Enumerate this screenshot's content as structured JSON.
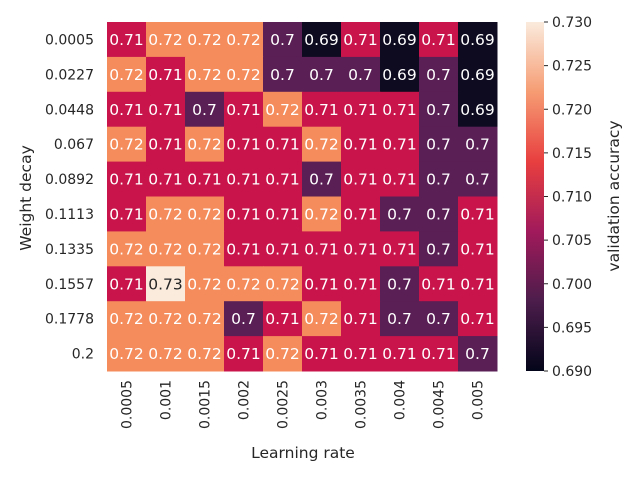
{
  "chart_data": {
    "type": "heatmap",
    "xlabel": "Learning rate",
    "ylabel": "Weight decay",
    "x_categories": [
      "0.0005",
      "0.001",
      "0.0015",
      "0.002",
      "0.0025",
      "0.003",
      "0.0035",
      "0.004",
      "0.0045",
      "0.005"
    ],
    "y_categories": [
      "0.0005",
      "0.0227",
      "0.0448",
      "0.067",
      "0.0892",
      "0.1113",
      "0.1335",
      "0.1557",
      "0.1778",
      "0.2"
    ],
    "values": [
      [
        0.71,
        0.72,
        0.72,
        0.72,
        0.7,
        0.69,
        0.71,
        0.69,
        0.71,
        0.69
      ],
      [
        0.72,
        0.71,
        0.72,
        0.72,
        0.7,
        0.7,
        0.7,
        0.69,
        0.7,
        0.69
      ],
      [
        0.71,
        0.71,
        0.7,
        0.71,
        0.72,
        0.71,
        0.71,
        0.71,
        0.7,
        0.69
      ],
      [
        0.72,
        0.71,
        0.72,
        0.71,
        0.71,
        0.72,
        0.71,
        0.71,
        0.7,
        0.7
      ],
      [
        0.71,
        0.71,
        0.71,
        0.71,
        0.71,
        0.7,
        0.71,
        0.71,
        0.7,
        0.7
      ],
      [
        0.71,
        0.72,
        0.72,
        0.71,
        0.71,
        0.72,
        0.71,
        0.7,
        0.7,
        0.71
      ],
      [
        0.72,
        0.72,
        0.72,
        0.71,
        0.71,
        0.71,
        0.71,
        0.71,
        0.7,
        0.71
      ],
      [
        0.71,
        0.73,
        0.72,
        0.72,
        0.72,
        0.71,
        0.71,
        0.7,
        0.71,
        0.71
      ],
      [
        0.72,
        0.72,
        0.72,
        0.7,
        0.71,
        0.72,
        0.71,
        0.7,
        0.7,
        0.71
      ],
      [
        0.72,
        0.72,
        0.72,
        0.71,
        0.72,
        0.71,
        0.71,
        0.71,
        0.71,
        0.7
      ]
    ],
    "cell_colors": [
      [
        "#c8144b",
        "#f48c5c",
        "#f48c5c",
        "#f48c5c",
        "#5a1f55",
        "#0e0b20",
        "#c8144b",
        "#0e0b20",
        "#c8144b",
        "#0e0b20"
      ],
      [
        "#f48c5c",
        "#c8144b",
        "#f48c5c",
        "#f48c5c",
        "#5a1f55",
        "#5a1f55",
        "#5a1f55",
        "#0e0b20",
        "#5a1f55",
        "#0e0b20"
      ],
      [
        "#c8144b",
        "#c8144b",
        "#5a1f55",
        "#c8144b",
        "#f48c5c",
        "#c8144b",
        "#c8144b",
        "#c8144b",
        "#5a1f55",
        "#0e0b20"
      ],
      [
        "#f48c5c",
        "#c8144b",
        "#f48c5c",
        "#c8144b",
        "#c8144b",
        "#f48c5c",
        "#c8144b",
        "#c8144b",
        "#5a1f55",
        "#5a1f55"
      ],
      [
        "#c8144b",
        "#c8144b",
        "#c8144b",
        "#c8144b",
        "#c8144b",
        "#5a1f55",
        "#c8144b",
        "#c8144b",
        "#5a1f55",
        "#5a1f55"
      ],
      [
        "#c8144b",
        "#f48c5c",
        "#f48c5c",
        "#c8144b",
        "#c8144b",
        "#f48c5c",
        "#c8144b",
        "#5a1f55",
        "#5a1f55",
        "#c8144b"
      ],
      [
        "#f48c5c",
        "#f48c5c",
        "#f48c5c",
        "#c8144b",
        "#c8144b",
        "#c8144b",
        "#c8144b",
        "#c8144b",
        "#5a1f55",
        "#c8144b"
      ],
      [
        "#c8144b",
        "#faebdd",
        "#f48c5c",
        "#f48c5c",
        "#f48c5c",
        "#c8144b",
        "#c8144b",
        "#5a1f55",
        "#c8144b",
        "#c8144b"
      ],
      [
        "#f48c5c",
        "#f48c5c",
        "#f48c5c",
        "#5a1f55",
        "#c8144b",
        "#f48c5c",
        "#c8144b",
        "#5a1f55",
        "#5a1f55",
        "#c8144b"
      ],
      [
        "#f48c5c",
        "#f48c5c",
        "#f48c5c",
        "#c8144b",
        "#f48c5c",
        "#c8144b",
        "#c8144b",
        "#c8144b",
        "#c8144b",
        "#5a1f55"
      ]
    ],
    "colorbar": {
      "label": "validation accuracy",
      "min": 0.69,
      "max": 0.73,
      "ticks": [
        "0.690",
        "0.695",
        "0.700",
        "0.705",
        "0.710",
        "0.715",
        "0.720",
        "0.725",
        "0.730"
      ],
      "tick_values": [
        0.69,
        0.695,
        0.7,
        0.705,
        0.71,
        0.715,
        0.72,
        0.725,
        0.73
      ],
      "gradient_colors": [
        "#03051a",
        "#4c1d4b",
        "#a11a5b",
        "#e83f3f",
        "#f69c73",
        "#faebdd"
      ]
    },
    "grid": false
  }
}
